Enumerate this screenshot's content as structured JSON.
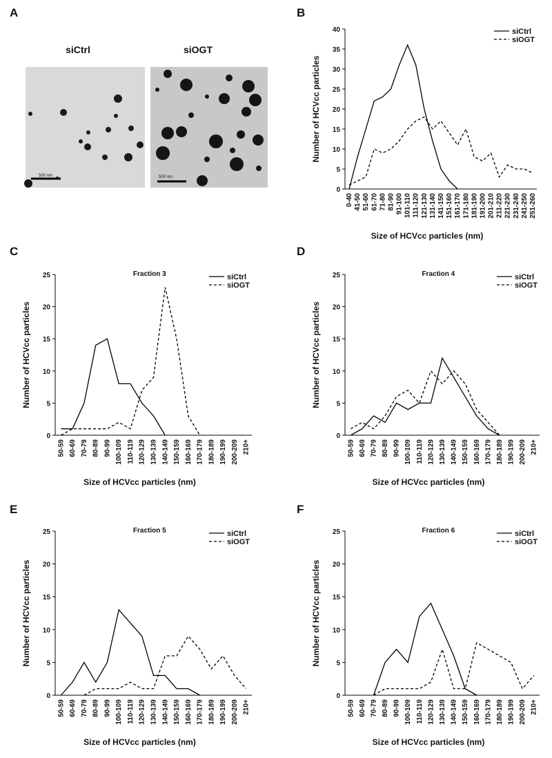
{
  "image_panel": {
    "panel": "A",
    "images": [
      {
        "caption": "siCtrl",
        "scale_bar": "500 nm"
      },
      {
        "caption": "siOGT",
        "scale_bar": "500 nm"
      }
    ]
  },
  "chart_data": [
    {
      "type": "line",
      "panel": "B",
      "x_label": "Size of HCVcc particles (nm)",
      "y_label": "Number of HCVcc particles",
      "categories": [
        "0-40",
        "41-50",
        "51-60",
        "61-70",
        "71-80",
        "81-90",
        "91-100",
        "101-110",
        "111-120",
        "121-130",
        "131-140",
        "141-150",
        "151-160",
        "161-170",
        "171-180",
        "181-190",
        "191-200",
        "201-210",
        "211-220",
        "221-230",
        "231-240",
        "241-250",
        "251-260"
      ],
      "series": [
        {
          "name": "siCtrl",
          "color": "#000000",
          "dash": "solid",
          "values": [
            0,
            8,
            15,
            22,
            23,
            25,
            31,
            36,
            31,
            20,
            12,
            5,
            2,
            0,
            null,
            null,
            null,
            null,
            null,
            null,
            null,
            null,
            null
          ]
        },
        {
          "name": "siOGT",
          "color": "#000000",
          "dash": "dashed",
          "values": [
            1,
            2,
            3,
            10,
            9,
            10,
            12,
            15,
            17,
            18,
            15,
            17,
            14,
            11,
            15,
            8,
            7,
            9,
            3,
            6,
            5,
            5,
            4
          ]
        }
      ],
      "ylim": [
        0,
        40
      ],
      "yticks": [
        0,
        5,
        10,
        15,
        20,
        25,
        30,
        35,
        40
      ],
      "legend": "top-right"
    },
    {
      "type": "line",
      "panel": "C",
      "title": "Fraction 3",
      "x_label": "Size of HCVcc particles (nm)",
      "y_label": "Number of HCVcc particles",
      "categories": [
        "50-59",
        "60-69",
        "70-79",
        "80-89",
        "90-99",
        "100-109",
        "110-119",
        "120-129",
        "130-139",
        "140-149",
        "150-159",
        "160-169",
        "170-179",
        "180-189",
        "190-199",
        "200-209",
        "210+"
      ],
      "series": [
        {
          "name": "siCtrl",
          "color": "#000000",
          "dash": "solid",
          "values": [
            1,
            1,
            5,
            14,
            15,
            8,
            8,
            5,
            3,
            0,
            null,
            null,
            null,
            null,
            null,
            null,
            null
          ]
        },
        {
          "name": "siOGT",
          "color": "#000000",
          "dash": "dashed",
          "values": [
            0,
            1,
            1,
            1,
            1,
            2,
            1,
            7,
            9,
            23,
            15,
            3,
            0,
            null,
            null,
            null,
            null
          ]
        }
      ],
      "ylim": [
        0,
        25
      ],
      "yticks": [
        0,
        5,
        10,
        15,
        20,
        25
      ],
      "legend": "top-right"
    },
    {
      "type": "line",
      "panel": "D",
      "title": "Fraction 4",
      "x_label": "Size of HCVcc particles (nm)",
      "y_label": "Number of HCVcc particles",
      "categories": [
        "50-59",
        "60-69",
        "70-79",
        "80-89",
        "90-99",
        "100-109",
        "110-119",
        "120-129",
        "130-139",
        "140-149",
        "150-159",
        "160-169",
        "170-179",
        "180-189",
        "190-199",
        "200-209",
        "210+"
      ],
      "series": [
        {
          "name": "siCtrl",
          "color": "#000000",
          "dash": "solid",
          "values": [
            0,
            1,
            3,
            2,
            5,
            4,
            5,
            5,
            12,
            9,
            6,
            3,
            1,
            0,
            null,
            null,
            null
          ]
        },
        {
          "name": "siOGT",
          "color": "#000000",
          "dash": "dashed",
          "values": [
            1,
            2,
            1,
            3,
            6,
            7,
            5,
            10,
            8,
            10,
            8,
            4,
            2,
            0,
            null,
            null,
            null
          ]
        }
      ],
      "ylim": [
        0,
        25
      ],
      "yticks": [
        0,
        5,
        10,
        15,
        20,
        25
      ],
      "legend": "top-right"
    },
    {
      "type": "line",
      "panel": "E",
      "title": "Fraction 5",
      "x_label": "Size of HCVcc particles (nm)",
      "y_label": "Number of HCVcc particles",
      "categories": [
        "50-59",
        "60-69",
        "70-79",
        "80-89",
        "90-99",
        "100-109",
        "110-119",
        "120-129",
        "130-139",
        "140-149",
        "150-159",
        "160-169",
        "170-179",
        "180-189",
        "190-199",
        "200-209",
        "210+"
      ],
      "series": [
        {
          "name": "siCtrl",
          "color": "#000000",
          "dash": "solid",
          "values": [
            0,
            2,
            5,
            2,
            5,
            13,
            11,
            9,
            3,
            3,
            1,
            1,
            0,
            null,
            null,
            null,
            null
          ]
        },
        {
          "name": "siOGT",
          "color": "#000000",
          "dash": "dashed",
          "values": [
            null,
            null,
            0,
            1,
            1,
            1,
            2,
            1,
            1,
            6,
            6,
            9,
            7,
            4,
            6,
            3,
            1
          ]
        }
      ],
      "ylim": [
        0,
        25
      ],
      "yticks": [
        0,
        5,
        10,
        15,
        20,
        25
      ],
      "legend": "top-right"
    },
    {
      "type": "line",
      "panel": "F",
      "title": "Fraction 6",
      "x_label": "Size of HCVcc particles (nm)",
      "y_label": "Number of HCVcc particles",
      "categories": [
        "50-59",
        "60-69",
        "70-79",
        "80-89",
        "90-99",
        "100-109",
        "110-119",
        "120-129",
        "130-139",
        "140-149",
        "150-159",
        "160-169",
        "170-179",
        "180-189",
        "190-199",
        "200-209",
        "210+"
      ],
      "series": [
        {
          "name": "siCtrl",
          "color": "#000000",
          "dash": "solid",
          "values": [
            null,
            null,
            0,
            5,
            7,
            5,
            12,
            14,
            10,
            6,
            1,
            0,
            null,
            null,
            null,
            null,
            null
          ]
        },
        {
          "name": "siOGT",
          "color": "#000000",
          "dash": "dashed",
          "values": [
            null,
            null,
            0,
            1,
            1,
            1,
            1,
            2,
            7,
            1,
            1,
            8,
            7,
            6,
            5,
            1,
            3
          ]
        }
      ],
      "ylim": [
        0,
        25
      ],
      "yticks": [
        0,
        5,
        10,
        15,
        20,
        25
      ],
      "legend": "top-right"
    }
  ]
}
